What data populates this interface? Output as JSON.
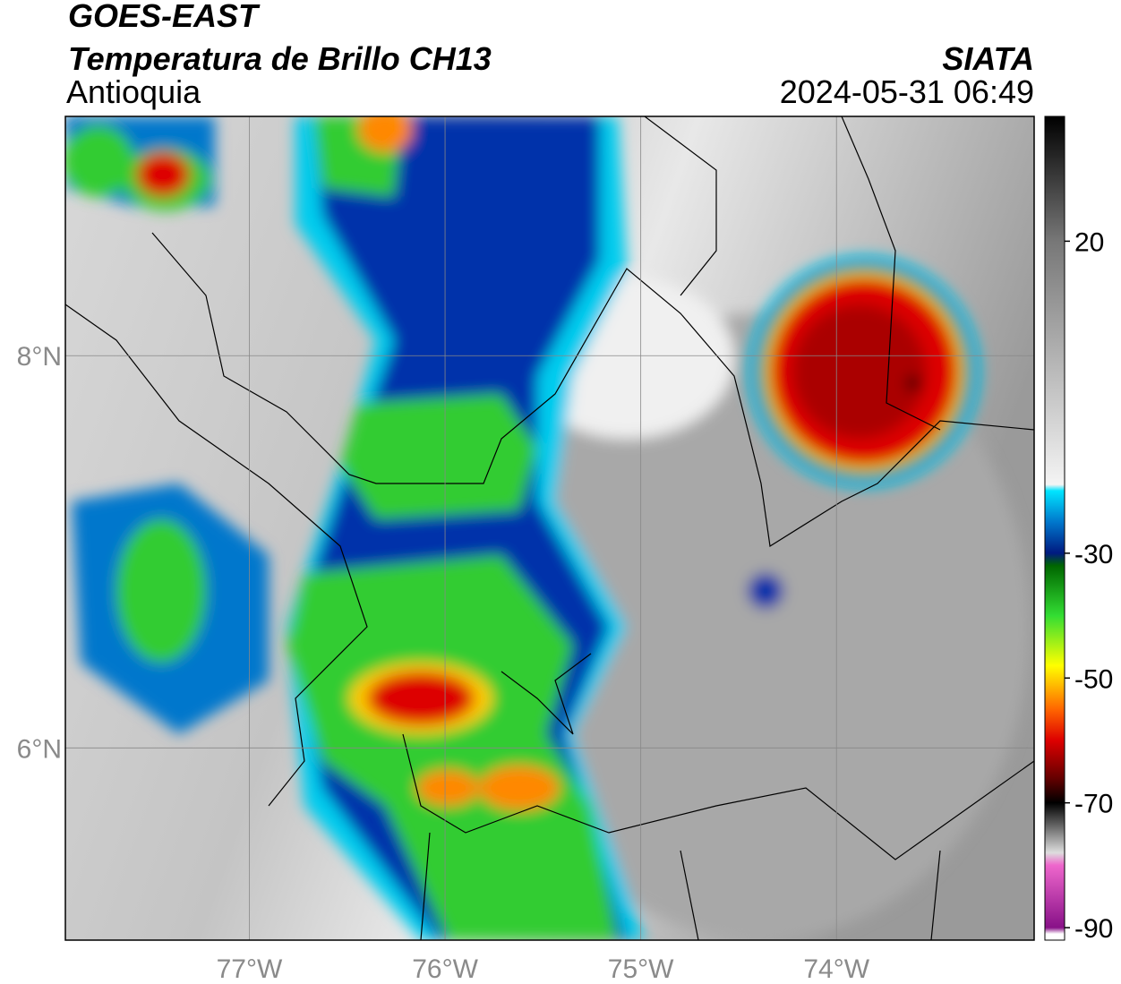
{
  "header": {
    "title": "GOES-EAST",
    "subtitle": "Temperatura de Brillo CH13",
    "region": "Antioquia",
    "agency": "SIATA",
    "datetime": "2024-05-31 06:49"
  },
  "map": {
    "lon_range": [
      -77.94,
      -72.99
    ],
    "lat_range": [
      5.02,
      9.22
    ],
    "lat_ticks": [
      {
        "value": 8,
        "label": "8°N"
      },
      {
        "value": 6,
        "label": "6°N"
      }
    ],
    "lon_ticks": [
      {
        "value": -77,
        "label": "77°W"
      },
      {
        "value": -76,
        "label": "76°W"
      },
      {
        "value": -75,
        "label": "75°W"
      },
      {
        "value": -74,
        "label": "74°W"
      }
    ],
    "grid": true
  },
  "colorbar": {
    "range": [
      -92,
      40
    ],
    "ticks": [
      20,
      -30,
      -50,
      -70,
      -90
    ],
    "colormap": [
      {
        "value": 40,
        "color": "#000000"
      },
      {
        "value": 20,
        "color": "#777777"
      },
      {
        "value": -19,
        "color": "#f4f4f4"
      },
      {
        "value": -20,
        "color": "#00e5ff"
      },
      {
        "value": -25,
        "color": "#0077cc"
      },
      {
        "value": -30,
        "color": "#001a80"
      },
      {
        "value": -32,
        "color": "#006600"
      },
      {
        "value": -40,
        "color": "#33dd33"
      },
      {
        "value": -48,
        "color": "#ffff00"
      },
      {
        "value": -55,
        "color": "#ff6600"
      },
      {
        "value": -60,
        "color": "#dd0000"
      },
      {
        "value": -66,
        "color": "#660000"
      },
      {
        "value": -70,
        "color": "#000000"
      },
      {
        "value": -78,
        "color": "#dddddd"
      },
      {
        "value": -80,
        "color": "#ee66cc"
      },
      {
        "value": -90,
        "color": "#881188"
      },
      {
        "value": -91,
        "color": "#ffffff"
      }
    ]
  }
}
